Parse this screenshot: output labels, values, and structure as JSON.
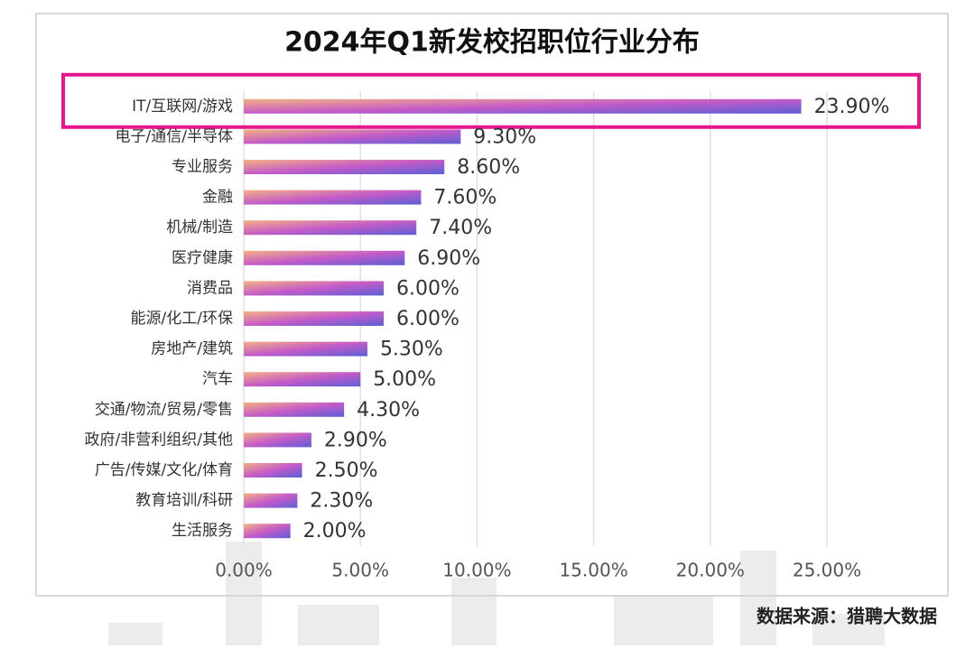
{
  "chart_data": {
    "type": "bar",
    "orientation": "horizontal",
    "title": "2024年Q1新发校招职位行业分布",
    "categories": [
      "IT/互联网/游戏",
      "电子/通信/半导体",
      "专业服务",
      "金融",
      "机械/制造",
      "医疗健康",
      "消费品",
      "能源/化工/环保",
      "房地产/建筑",
      "汽车",
      "交通/物流/贸易/零售",
      "政府/非营利组织/其他",
      "广告/传媒/文化/体育",
      "教育培训/科研",
      "生活服务"
    ],
    "values": [
      23.9,
      9.3,
      8.6,
      7.6,
      7.4,
      6.9,
      6.0,
      6.0,
      5.3,
      5.0,
      4.3,
      2.9,
      2.5,
      2.3,
      2.0
    ],
    "value_labels": [
      "23.90%",
      "9.30%",
      "8.60%",
      "7.60%",
      "7.40%",
      "6.90%",
      "6.00%",
      "6.00%",
      "5.30%",
      "5.00%",
      "4.30%",
      "2.90%",
      "2.50%",
      "2.30%",
      "2.00%"
    ],
    "xlim": [
      0,
      25
    ],
    "xticks": [
      {
        "value": 0,
        "label": "0.00%"
      },
      {
        "value": 5,
        "label": "5.00%"
      },
      {
        "value": 10,
        "label": "10.00%"
      },
      {
        "value": 15,
        "label": "15.00%"
      },
      {
        "value": 20,
        "label": "20.00%"
      },
      {
        "value": 25,
        "label": "25.00%"
      }
    ],
    "grid": true,
    "highlight_index": 0,
    "source": "数据来源：猎聘大数据"
  }
}
